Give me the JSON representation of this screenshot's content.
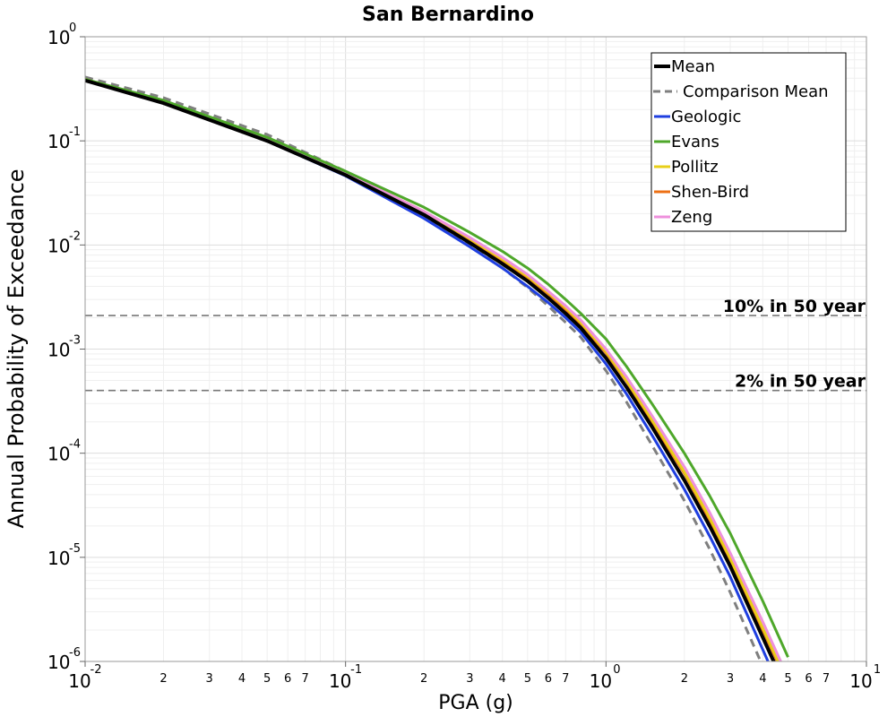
{
  "chart_data": {
    "type": "line",
    "title": "San Bernardino",
    "xlabel": "PGA (g)",
    "ylabel": "Annual Probability of Exceedance",
    "xscale": "log",
    "yscale": "log",
    "xlim": [
      0.01,
      10
    ],
    "ylim": [
      1e-06,
      1
    ],
    "grid": true,
    "legend_position": "top-right",
    "x_ticks": [
      {
        "value": 0.01,
        "base": "10",
        "exp": "-2"
      },
      {
        "value": 0.1,
        "base": "10",
        "exp": "-1"
      },
      {
        "value": 1,
        "base": "10",
        "exp": "0"
      },
      {
        "value": 10,
        "base": "10",
        "exp": "1"
      }
    ],
    "x_minor_labels": [
      "2",
      "3",
      "4",
      "5",
      "6",
      "7"
    ],
    "y_ticks": [
      {
        "value": 1,
        "base": "10",
        "exp": "0"
      },
      {
        "value": 0.1,
        "base": "10",
        "exp": "-1"
      },
      {
        "value": 0.01,
        "base": "10",
        "exp": "-2"
      },
      {
        "value": 0.001,
        "base": "10",
        "exp": "-3"
      },
      {
        "value": 0.0001,
        "base": "10",
        "exp": "-4"
      },
      {
        "value": 1e-05,
        "base": "10",
        "exp": "-5"
      },
      {
        "value": 1e-06,
        "base": "10",
        "exp": "-6"
      }
    ],
    "reference_lines": [
      {
        "label": "10% in 50 year",
        "value": 0.0021
      },
      {
        "label": "2% in 50 year",
        "value": 0.0004
      }
    ],
    "series": [
      {
        "name": "Mean",
        "color": "#000000",
        "dashed": false,
        "width": 4,
        "x": [
          0.01,
          0.02,
          0.05,
          0.1,
          0.2,
          0.3,
          0.4,
          0.5,
          0.6,
          0.7,
          0.8,
          1.0,
          1.2,
          1.5,
          2.0,
          2.5,
          3.0,
          4.0,
          5.0
        ],
        "y": [
          0.38,
          0.23,
          0.1,
          0.047,
          0.0195,
          0.0105,
          0.0066,
          0.0045,
          0.0031,
          0.0022,
          0.0016,
          0.00082,
          0.00043,
          0.00018,
          5.5e-05,
          2e-05,
          8.2e-06,
          1.7e-06,
          5e-07
        ]
      },
      {
        "name": "Comparison Mean",
        "color": "#7f7f7f",
        "dashed": true,
        "width": 3,
        "x": [
          0.01,
          0.02,
          0.05,
          0.1,
          0.2,
          0.3,
          0.4,
          0.5,
          0.6,
          0.7,
          0.8,
          1.0,
          1.2,
          1.5,
          2.0,
          2.5,
          3.0,
          4.0,
          5.0
        ],
        "y": [
          0.41,
          0.26,
          0.115,
          0.051,
          0.0185,
          0.0098,
          0.006,
          0.0039,
          0.0026,
          0.0018,
          0.0013,
          0.00062,
          0.00031,
          0.00012,
          3.5e-05,
          1.2e-05,
          4.6e-06,
          9e-07,
          2.5e-07
        ]
      },
      {
        "name": "Geologic",
        "color": "#1f3fe0",
        "dashed": false,
        "width": 3,
        "x": [
          0.01,
          0.02,
          0.05,
          0.1,
          0.2,
          0.3,
          0.4,
          0.5,
          0.6,
          0.7,
          0.8,
          1.0,
          1.2,
          1.5,
          2.0,
          2.5,
          3.0,
          4.0,
          5.0
        ],
        "y": [
          0.38,
          0.23,
          0.1,
          0.046,
          0.018,
          0.0096,
          0.006,
          0.004,
          0.0028,
          0.002,
          0.00145,
          0.00072,
          0.00037,
          0.00015,
          4.5e-05,
          1.6e-05,
          6.5e-06,
          1.3e-06,
          3.7e-07
        ]
      },
      {
        "name": "Evans",
        "color": "#4ea72a",
        "dashed": false,
        "width": 3,
        "x": [
          0.01,
          0.02,
          0.05,
          0.1,
          0.2,
          0.3,
          0.4,
          0.5,
          0.6,
          0.7,
          0.8,
          1.0,
          1.2,
          1.5,
          2.0,
          2.5,
          3.0,
          4.0,
          5.0
        ],
        "y": [
          0.39,
          0.245,
          0.108,
          0.051,
          0.023,
          0.0132,
          0.0087,
          0.006,
          0.0042,
          0.003,
          0.0022,
          0.00125,
          0.00068,
          0.0003,
          0.0001,
          3.9e-05,
          1.7e-05,
          3.8e-06,
          1.1e-06
        ]
      },
      {
        "name": "Pollitz",
        "color": "#e8cf18",
        "dashed": false,
        "width": 3,
        "x": [
          0.01,
          0.02,
          0.05,
          0.1,
          0.2,
          0.3,
          0.4,
          0.5,
          0.6,
          0.7,
          0.8,
          1.0,
          1.2,
          1.5,
          2.0,
          2.5,
          3.0,
          4.0,
          5.0
        ],
        "y": [
          0.39,
          0.24,
          0.106,
          0.049,
          0.021,
          0.0115,
          0.0073,
          0.005,
          0.0035,
          0.0025,
          0.0018,
          0.00095,
          0.0005,
          0.00021,
          6.6e-05,
          2.4e-05,
          9.8e-06,
          2.1e-06,
          6.2e-07
        ]
      },
      {
        "name": "Shen-Bird",
        "color": "#ed7014",
        "dashed": false,
        "width": 3,
        "x": [
          0.01,
          0.02,
          0.05,
          0.1,
          0.2,
          0.3,
          0.4,
          0.5,
          0.6,
          0.7,
          0.8,
          1.0,
          1.2,
          1.5,
          2.0,
          2.5,
          3.0,
          4.0,
          5.0
        ],
        "y": [
          0.385,
          0.235,
          0.102,
          0.048,
          0.0205,
          0.011,
          0.007,
          0.0048,
          0.0034,
          0.0024,
          0.00175,
          0.00092,
          0.00049,
          0.0002,
          6.4e-05,
          2.3e-05,
          9.5e-06,
          2e-06,
          6e-07
        ]
      },
      {
        "name": "Zeng",
        "color": "#ee90dc",
        "dashed": false,
        "width": 3,
        "x": [
          0.01,
          0.02,
          0.05,
          0.1,
          0.2,
          0.3,
          0.4,
          0.5,
          0.6,
          0.7,
          0.8,
          1.0,
          1.2,
          1.5,
          2.0,
          2.5,
          3.0,
          4.0,
          5.0
        ],
        "y": [
          0.385,
          0.235,
          0.103,
          0.049,
          0.021,
          0.0118,
          0.0076,
          0.0052,
          0.0036,
          0.0026,
          0.0019,
          0.001,
          0.00054,
          0.00023,
          7.4e-05,
          2.7e-05,
          1.1e-05,
          2.4e-06,
          7e-07
        ]
      }
    ]
  }
}
